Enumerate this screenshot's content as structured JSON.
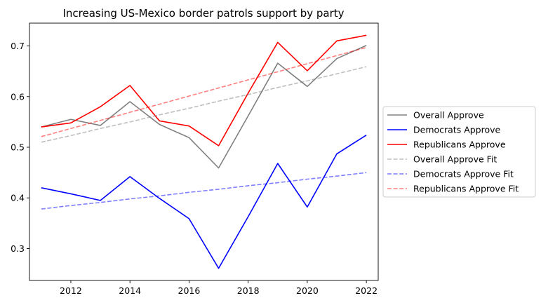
{
  "chart_data": {
    "type": "line",
    "title": "Increasing US-Mexico border patrols support by party",
    "xlabel": "",
    "ylabel": "",
    "xlim": [
      2010.6,
      2022.4
    ],
    "ylim": [
      0.237,
      0.745
    ],
    "xticks": [
      2012,
      2014,
      2016,
      2018,
      2020,
      2022
    ],
    "yticks": [
      0.3,
      0.4,
      0.5,
      0.6,
      0.7
    ],
    "grid": false,
    "legend_position": "center-right-outside",
    "x": [
      2011,
      2012,
      2013,
      2014,
      2015,
      2016,
      2017,
      2018,
      2019,
      2020,
      2021,
      2022
    ],
    "series": [
      {
        "name": "Overall Approve",
        "color": "#808080",
        "style": "solid",
        "values": [
          0.54,
          0.555,
          0.543,
          0.59,
          0.545,
          0.519,
          0.459,
          0.562,
          0.666,
          0.62,
          0.675,
          0.701
        ]
      },
      {
        "name": "Democrats Approve",
        "color": "#0000ff",
        "style": "solid",
        "values": [
          0.42,
          0.408,
          0.395,
          0.442,
          0.399,
          0.359,
          0.261,
          0.363,
          0.468,
          0.382,
          0.487,
          0.524
        ]
      },
      {
        "name": "Republicans Approve",
        "color": "#ff0000",
        "style": "solid",
        "values": [
          0.54,
          0.548,
          0.58,
          0.622,
          0.552,
          0.542,
          0.503,
          0.607,
          0.707,
          0.651,
          0.71,
          0.721
        ]
      },
      {
        "name": "Overall Approve Fit",
        "color": "#808080",
        "style": "dashed",
        "alpha": 0.5,
        "values": [
          0.51,
          0.523,
          0.537,
          0.55,
          0.564,
          0.577,
          0.591,
          0.604,
          0.618,
          0.631,
          0.645,
          0.659
        ]
      },
      {
        "name": "Democrats Approve Fit",
        "color": "#0000ff",
        "style": "dashed",
        "alpha": 0.5,
        "values": [
          0.378,
          0.385,
          0.391,
          0.398,
          0.404,
          0.411,
          0.417,
          0.424,
          0.43,
          0.437,
          0.443,
          0.45
        ]
      },
      {
        "name": "Republicans Approve Fit",
        "color": "#ff0000",
        "style": "dashed",
        "alpha": 0.5,
        "values": [
          0.521,
          0.537,
          0.553,
          0.569,
          0.585,
          0.601,
          0.617,
          0.633,
          0.649,
          0.665,
          0.681,
          0.697
        ]
      }
    ]
  }
}
